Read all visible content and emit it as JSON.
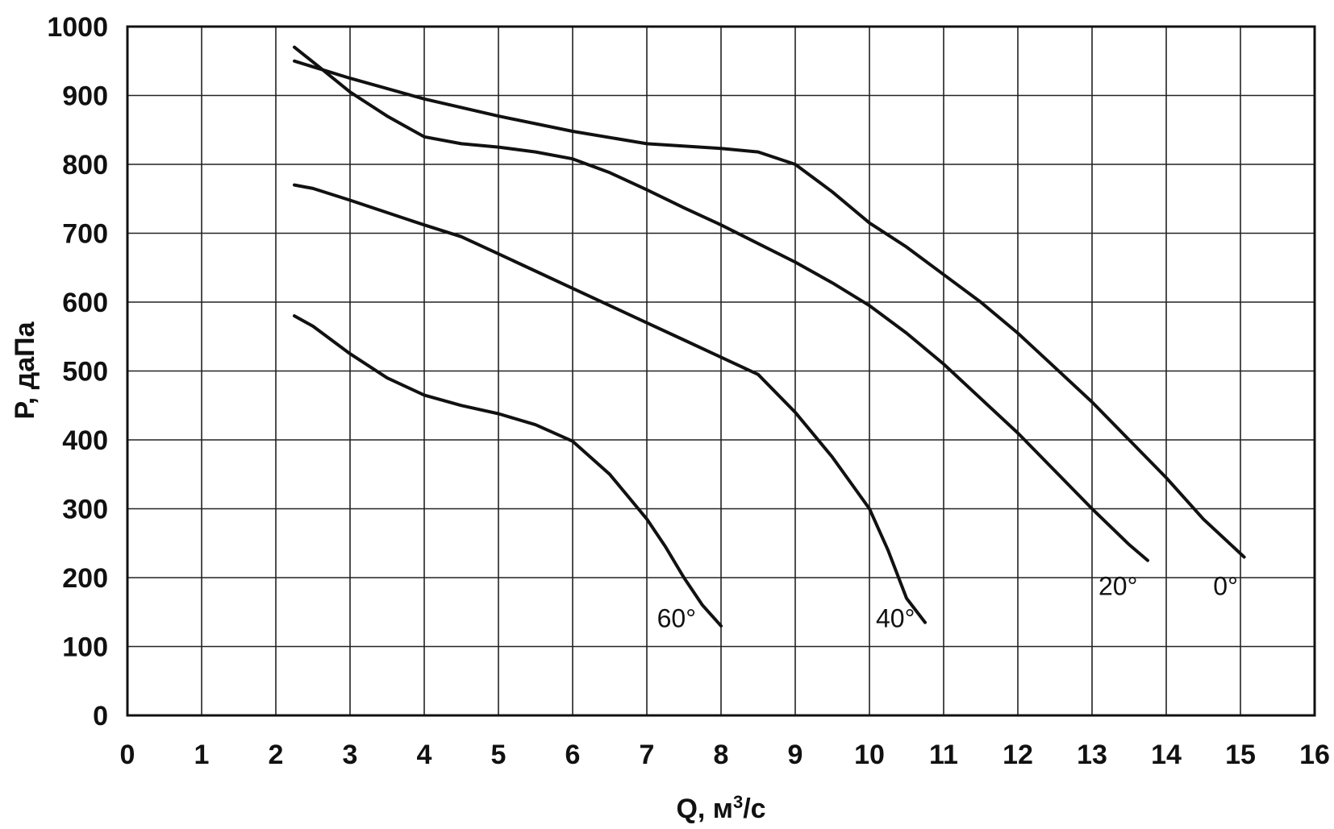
{
  "chart_data": {
    "type": "line",
    "xlabel": "Q, м³/с",
    "xlabel_parts": {
      "main": "Q, м",
      "sup": "3",
      "tail": "/с"
    },
    "ylabel": "P, даПа",
    "xlim": [
      0,
      16
    ],
    "ylim": [
      0,
      1000
    ],
    "xticks": [
      0,
      1,
      2,
      3,
      4,
      5,
      6,
      7,
      8,
      9,
      10,
      11,
      12,
      13,
      14,
      15,
      16
    ],
    "yticks": [
      0,
      100,
      200,
      300,
      400,
      500,
      600,
      700,
      800,
      900,
      1000
    ],
    "grid": true,
    "legend": "none",
    "series": [
      {
        "label": "0°",
        "label_at": [
          14.8,
          175
        ],
        "x": [
          2.25,
          3,
          4,
          5,
          6,
          7,
          8,
          8.5,
          9,
          9.5,
          10,
          10.5,
          11,
          11.5,
          12,
          12.5,
          13,
          13.5,
          14,
          14.5,
          15,
          15.05
        ],
        "y": [
          950,
          925,
          895,
          870,
          848,
          830,
          823,
          818,
          800,
          760,
          715,
          680,
          640,
          600,
          555,
          505,
          455,
          400,
          345,
          285,
          235,
          230
        ]
      },
      {
        "label": "20°",
        "label_at": [
          13.35,
          175
        ],
        "x": [
          2.25,
          2.6,
          3,
          3.5,
          4,
          4.5,
          5,
          5.5,
          6,
          6.5,
          7,
          7.5,
          8,
          8.5,
          9,
          9.5,
          10,
          10.5,
          11,
          11.5,
          12,
          12.5,
          13,
          13.5,
          13.75
        ],
        "y": [
          970,
          940,
          905,
          870,
          840,
          830,
          825,
          818,
          808,
          788,
          763,
          737,
          712,
          685,
          658,
          628,
          595,
          555,
          510,
          460,
          410,
          355,
          300,
          248,
          225
        ]
      },
      {
        "label": "40°",
        "label_at": [
          10.35,
          128
        ],
        "x": [
          2.25,
          2.5,
          3,
          3.5,
          4,
          4.5,
          5,
          5.5,
          6,
          6.5,
          7,
          7.5,
          8,
          8.5,
          9,
          9.5,
          10,
          10.25,
          10.5,
          10.75
        ],
        "y": [
          770,
          765,
          748,
          730,
          712,
          695,
          670,
          645,
          620,
          595,
          570,
          545,
          520,
          495,
          440,
          375,
          300,
          240,
          170,
          135
        ]
      },
      {
        "label": "60°",
        "label_at": [
          7.4,
          128
        ],
        "x": [
          2.25,
          2.5,
          3,
          3.5,
          4,
          4.5,
          5,
          5.5,
          6,
          6.5,
          7,
          7.25,
          7.5,
          7.75,
          8
        ],
        "y": [
          580,
          565,
          525,
          490,
          465,
          450,
          438,
          422,
          398,
          350,
          285,
          245,
          200,
          160,
          130
        ]
      }
    ]
  }
}
